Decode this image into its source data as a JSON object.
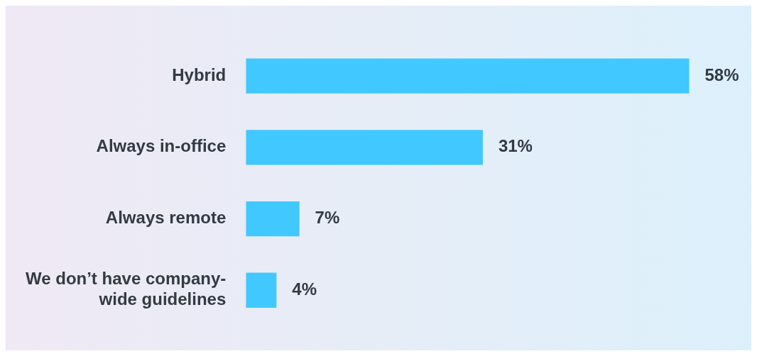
{
  "chart_data": {
    "type": "bar",
    "orientation": "horizontal",
    "categories": [
      "Hybrid",
      "Always in-office",
      "Always remote",
      "We don’t have company-wide guidelines"
    ],
    "values": [
      58,
      31,
      7,
      4
    ],
    "value_labels": [
      "58%",
      "31%",
      "7%",
      "4%"
    ],
    "color": "#40c8ff",
    "legend": false
  }
}
